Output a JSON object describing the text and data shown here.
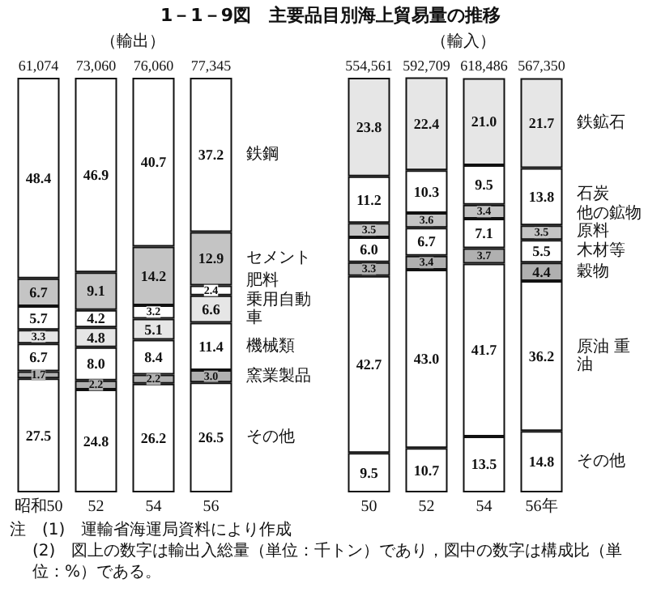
{
  "chart_data": [
    {
      "type": "bar",
      "title": "1－1－9図　主要品目別海上貿易量の推移",
      "subtitle": "（輸出）",
      "categories": [
        "昭和50",
        "52",
        "54",
        "56"
      ],
      "stacked": true,
      "ylim": [
        0,
        100
      ],
      "tick_labels": "x",
      "legend": "right",
      "series": [
        {
          "name": "その他",
          "color": "#ffffff",
          "values": [
            27.5,
            24.8,
            26.2,
            26.5
          ],
          "value_labels": [
            "27.5",
            "24.8",
            "26.2",
            "26.5"
          ]
        },
        {
          "name": "窯業製品",
          "color": "#b0b0b0",
          "values": [
            1.7,
            2.2,
            2.2,
            3.0
          ],
          "value_labels": [
            "1.7",
            "2.2",
            "2.2",
            "3.0"
          ]
        },
        {
          "name": "機械類",
          "color": "#ffffff",
          "values": [
            6.7,
            8.0,
            8.4,
            11.4
          ],
          "value_labels": [
            "6.7",
            "8.0",
            "8.4",
            "11.4"
          ]
        },
        {
          "name": "乗用自動車",
          "color": "#e6e6e6",
          "values": [
            3.3,
            4.8,
            5.1,
            6.6
          ],
          "value_labels": [
            "3.3",
            "4.8",
            "5.1",
            "6.6"
          ]
        },
        {
          "name": "肥料",
          "color": "#ffffff",
          "values": [
            5.7,
            4.2,
            3.2,
            2.4
          ],
          "value_labels": [
            "5.7",
            "4.2",
            "3.2",
            "2.4"
          ]
        },
        {
          "name": "セメント",
          "color": "#c4c4c4",
          "values": [
            6.7,
            9.1,
            14.2,
            12.9
          ],
          "value_labels": [
            "6.7",
            "9.1",
            "14.2",
            "12.9"
          ]
        },
        {
          "name": "鉄鋼",
          "color": "#ffffff",
          "values": [
            48.4,
            46.9,
            40.7,
            37.2
          ],
          "value_labels": [
            "48.4",
            "46.9",
            "40.7",
            "37.2"
          ]
        }
      ],
      "annotations": [
        {
          "text": "61,074",
          "x": "昭和50",
          "y": 100
        },
        {
          "text": "73,060",
          "x": "52",
          "y": 100
        },
        {
          "text": "76,060",
          "x": "54",
          "y": 100
        },
        {
          "text": "77,345",
          "x": "56",
          "y": 100
        },
        "注　(1)　運輸省海運局資料により作成",
        "(2)　図上の数字は輸出入総量（単位：千トン）であり，図中の数字は構成比（単位：%）である。"
      ]
    },
    {
      "type": "bar",
      "subtitle": "（輸入）",
      "categories": [
        "50",
        "52",
        "54",
        "56年"
      ],
      "stacked": true,
      "ylim": [
        0,
        100
      ],
      "tick_labels": "x",
      "legend": "right",
      "series": [
        {
          "name": "その他",
          "color": "#ffffff",
          "values": [
            9.5,
            10.7,
            13.5,
            14.8
          ],
          "value_labels": [
            "9.5",
            "10.7",
            "13.5",
            "14.8"
          ]
        },
        {
          "name": "原油 重油",
          "color": "#ffffff",
          "values": [
            42.7,
            43.0,
            41.7,
            36.2
          ],
          "value_labels": [
            "42.7",
            "43.0",
            "41.7",
            "36.2"
          ]
        },
        {
          "name": "穀物",
          "color": "#b0b0b0",
          "values": [
            3.3,
            3.4,
            3.7,
            4.4
          ],
          "value_labels": [
            "3.3",
            "3.4",
            "3.7",
            "4.4"
          ]
        },
        {
          "name": "木材等",
          "color": "#ffffff",
          "values": [
            6.0,
            6.7,
            7.1,
            5.5
          ],
          "value_labels": [
            "6.0",
            "6.7",
            "7.1",
            "5.5"
          ]
        },
        {
          "name": "他の鉱物原料",
          "color": "#c4c4c4",
          "values": [
            3.5,
            3.6,
            3.4,
            3.5
          ],
          "value_labels": [
            "3.5",
            "3.6",
            "3.4",
            "3.5"
          ]
        },
        {
          "name": "石炭",
          "color": "#ffffff",
          "values": [
            11.2,
            10.3,
            9.5,
            13.8
          ],
          "value_labels": [
            "11.2",
            "10.3",
            "9.5",
            "13.8"
          ]
        },
        {
          "name": "鉄鉱石",
          "color": "#e6e6e6",
          "values": [
            23.8,
            22.4,
            21.0,
            21.7
          ],
          "value_labels": [
            "23.8",
            "22.4",
            "21.0",
            "21.7"
          ]
        }
      ],
      "annotations": [
        {
          "text": "554,561",
          "x": "50",
          "y": 100
        },
        {
          "text": "592,709",
          "x": "52",
          "y": 100
        },
        {
          "text": "618,486",
          "x": "54",
          "y": 100
        },
        {
          "text": "567,350",
          "x": "56年",
          "y": 100
        }
      ]
    }
  ]
}
